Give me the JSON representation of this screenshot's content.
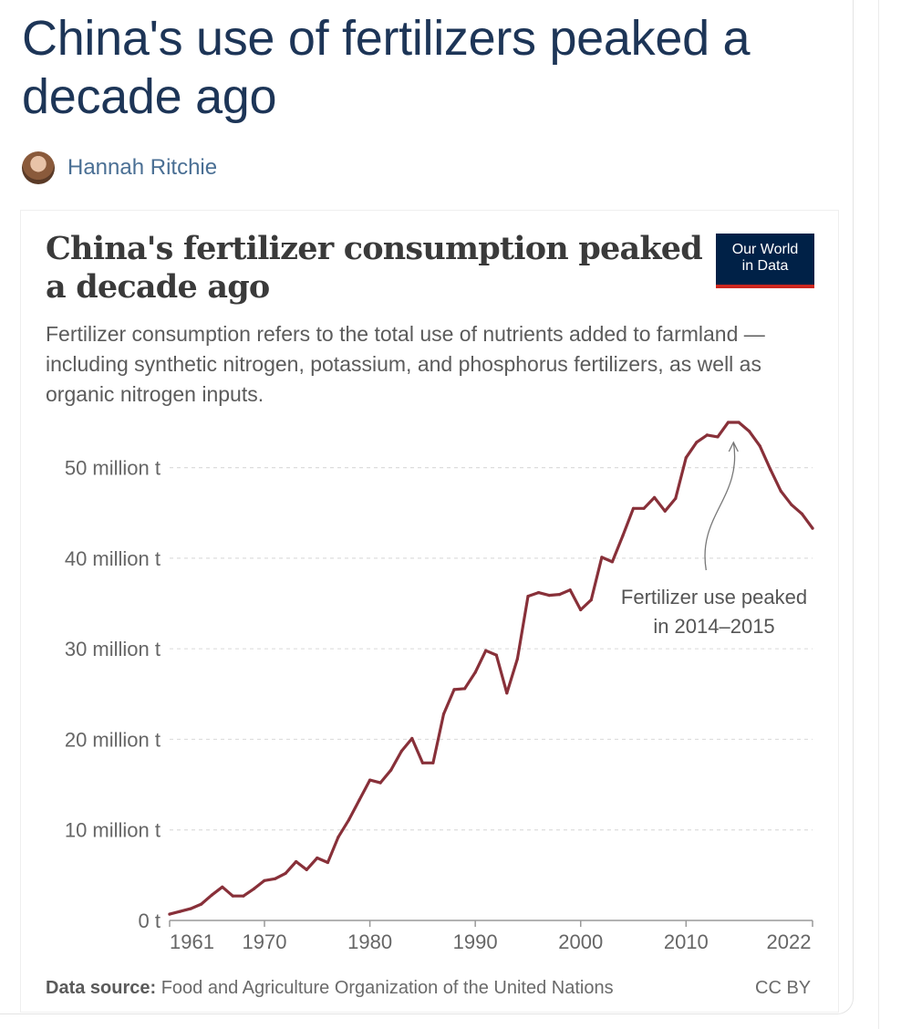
{
  "article": {
    "title": "China's use of fertilizers peaked a decade ago",
    "author": "Hannah Ritchie"
  },
  "chart": {
    "logo_line1": "Our World",
    "logo_line2": "in Data",
    "subtitle": "Fertilizer consumption refers to the total use of nutrients added to farmland — including synthetic nitrogen, potassium, and phosphorus fertilizers, as well as organic nitrogen inputs.",
    "source_label": "Data source:",
    "source_text": "Food and Agriculture Organization of the United Nations",
    "license": "CC BY"
  },
  "colors": {
    "line": "#883039",
    "title": "#1d3557",
    "logo_bg": "#002147",
    "logo_accent": "#ce261e"
  },
  "chart_data": {
    "type": "line",
    "title": "China's fertilizer consumption peaked a decade ago",
    "xlabel": "",
    "ylabel": "",
    "xlim": [
      1961,
      2022
    ],
    "ylim": [
      0,
      55
    ],
    "grid": true,
    "y_ticks": [
      {
        "value": 0,
        "label": "0 t"
      },
      {
        "value": 10,
        "label": "10 million t"
      },
      {
        "value": 20,
        "label": "20 million t"
      },
      {
        "value": 30,
        "label": "30 million t"
      },
      {
        "value": 40,
        "label": "40 million t"
      },
      {
        "value": 50,
        "label": "50 million t"
      }
    ],
    "x_ticks": [
      {
        "value": 1961,
        "label": "1961"
      },
      {
        "value": 1970,
        "label": "1970"
      },
      {
        "value": 1980,
        "label": "1980"
      },
      {
        "value": 1990,
        "label": "1990"
      },
      {
        "value": 2000,
        "label": "2000"
      },
      {
        "value": 2010,
        "label": "2010"
      },
      {
        "value": 2022,
        "label": "2022"
      }
    ],
    "series": [
      {
        "name": "China",
        "unit": "million t",
        "x": [
          1961,
          1962,
          1963,
          1964,
          1965,
          1966,
          1967,
          1968,
          1969,
          1970,
          1971,
          1972,
          1973,
          1974,
          1975,
          1976,
          1977,
          1978,
          1979,
          1980,
          1981,
          1982,
          1983,
          1984,
          1985,
          1986,
          1987,
          1988,
          1989,
          1990,
          1991,
          1992,
          1993,
          1994,
          1995,
          1996,
          1997,
          1998,
          1999,
          2000,
          2001,
          2002,
          2003,
          2004,
          2005,
          2006,
          2007,
          2008,
          2009,
          2010,
          2011,
          2012,
          2013,
          2014,
          2015,
          2016,
          2017,
          2018,
          2019,
          2020,
          2021,
          2022
        ],
        "values": [
          0.7,
          1.0,
          1.3,
          1.8,
          2.8,
          3.7,
          2.7,
          2.7,
          3.5,
          4.4,
          4.6,
          5.2,
          6.5,
          5.6,
          6.9,
          6.4,
          9.2,
          11.1,
          13.3,
          15.5,
          15.2,
          16.6,
          18.7,
          20.1,
          17.4,
          17.4,
          22.8,
          25.5,
          25.6,
          27.4,
          29.8,
          29.3,
          25.1,
          28.9,
          35.8,
          36.2,
          35.9,
          36.0,
          36.5,
          34.3,
          35.4,
          40.1,
          39.6,
          42.5,
          45.5,
          45.5,
          46.7,
          45.2,
          46.6,
          51.1,
          52.8,
          53.6,
          53.4,
          55.0,
          55.0,
          54.0,
          52.4,
          49.8,
          47.4,
          45.9,
          44.9,
          43.3
        ]
      }
    ],
    "annotations": [
      {
        "text_lines": [
          "Fertilizer use peaked",
          "in 2014–2015"
        ],
        "x": 2014.5,
        "y": 55
      }
    ]
  }
}
